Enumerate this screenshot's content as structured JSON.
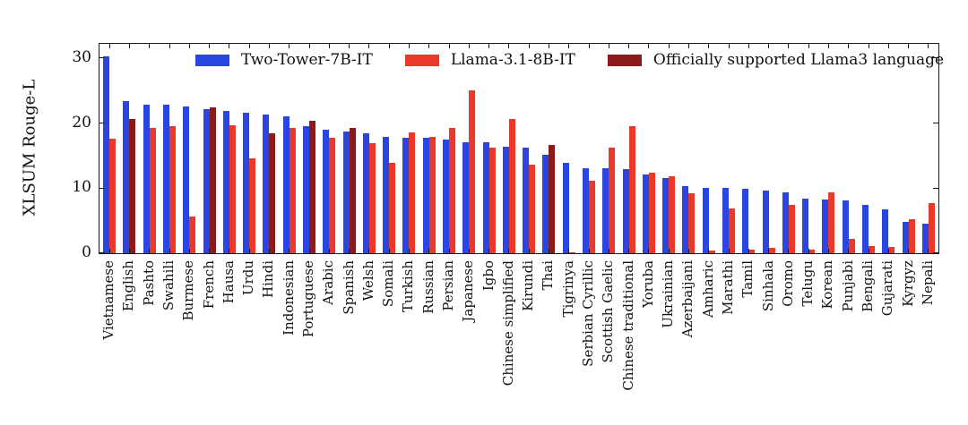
{
  "chart_data": {
    "type": "bar",
    "title": "",
    "xlabel": "",
    "ylabel": "XLSUM Rouge-L",
    "ylim": [
      0,
      32.2
    ],
    "yticks": [
      0,
      10,
      20,
      30
    ],
    "grid": false,
    "legend_position": "upper center inside, single row",
    "legend": [
      {
        "label": "Two-Tower-7B-IT",
        "color": "#2b45e0"
      },
      {
        "label": "Llama-3.1-8B-IT",
        "color": "#e8392b"
      },
      {
        "label": "Officially supported Llama3 language",
        "color": "#8b1a1a"
      }
    ],
    "colors": {
      "two_tower": "#2b45e0",
      "llama": "#e8392b",
      "supported": "#8b1a1a"
    },
    "categories": [
      "Vietnamese",
      "English",
      "Pashto",
      "Swahili",
      "Burmese",
      "French",
      "Hausa",
      "Urdu",
      "Hindi",
      "Indonesian",
      "Portuguese",
      "Arabic",
      "Spanish",
      "Welsh",
      "Somali",
      "Turkish",
      "Russian",
      "Persian",
      "Japanese",
      "Igbo",
      "Chinese simplified",
      "Kirundi",
      "Thai",
      "Tigrinya",
      "Serbian Cyrillic",
      "Scottish Gaelic",
      "Chinese traditional",
      "Yoruba",
      "Ukrainian",
      "Azerbaijani",
      "Amharic",
      "Marathi",
      "Tamil",
      "Sinhala",
      "Oromo",
      "Telugu",
      "Korean",
      "Punjabi",
      "Bengali",
      "Gujarati",
      "Kyrgyz",
      "Nepali"
    ],
    "series": [
      {
        "name": "Two-Tower-7B-IT",
        "values": [
          30.3,
          23.4,
          22.9,
          22.9,
          22.6,
          22.2,
          21.9,
          21.6,
          21.4,
          21.1,
          19.6,
          19.0,
          18.7,
          18.4,
          17.9,
          17.8,
          17.7,
          17.5,
          17.1,
          17.0,
          16.4,
          16.2,
          15.2,
          13.9,
          13.1,
          13.1,
          13.0,
          12.1,
          11.6,
          10.3,
          10.1,
          10.0,
          9.9,
          9.6,
          9.4,
          8.4,
          8.2,
          8.1,
          7.5,
          6.7,
          4.8,
          4.6
        ]
      },
      {
        "name": "Llama-3.1-8B-IT",
        "values": [
          17.6,
          20.6,
          19.3,
          19.5,
          5.7,
          22.4,
          19.7,
          14.6,
          18.4,
          19.3,
          20.3,
          17.7,
          19.2,
          16.9,
          13.9,
          18.6,
          17.9,
          19.2,
          25.0,
          16.2,
          20.6,
          13.6,
          16.6,
          0.2,
          11.1,
          16.2,
          19.6,
          12.4,
          11.8,
          9.2,
          0.4,
          6.9,
          0.5,
          0.8,
          7.5,
          0.6,
          9.4,
          2.2,
          1.1,
          0.9,
          5.2,
          7.7
        ]
      }
    ],
    "officially_supported": [
      "English",
      "French",
      "Hindi",
      "Portuguese",
      "Spanish",
      "Thai"
    ]
  }
}
